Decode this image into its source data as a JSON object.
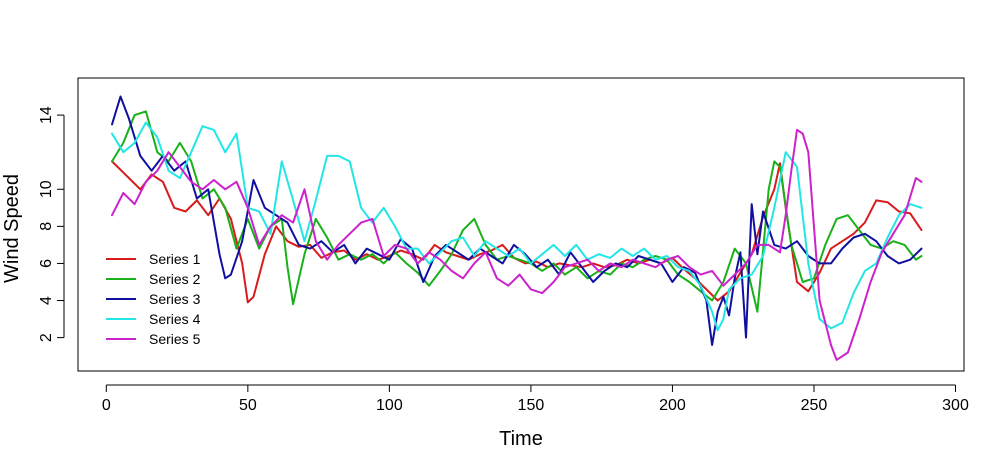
{
  "chart_data": {
    "type": "line",
    "xlabel": "Time",
    "ylabel": "Wind Speed",
    "xlim": [
      -10,
      303
    ],
    "ylim": [
      0.2,
      16.0
    ],
    "xticks": [
      0,
      50,
      100,
      150,
      200,
      250,
      300
    ],
    "yticks": [
      2,
      4,
      6,
      8,
      10,
      14
    ],
    "grid": false,
    "legend_position": "bottom-left",
    "series": [
      {
        "name": "Series 1",
        "color": "#d81b1b",
        "x": [
          2,
          8,
          12,
          16,
          20,
          24,
          28,
          32,
          36,
          40,
          44,
          48,
          50,
          52,
          56,
          60,
          64,
          68,
          72,
          76,
          80,
          84,
          88,
          92,
          96,
          100,
          104,
          108,
          112,
          116,
          120,
          124,
          128,
          132,
          136,
          140,
          144,
          148,
          152,
          156,
          160,
          164,
          168,
          172,
          176,
          180,
          184,
          188,
          192,
          196,
          200,
          204,
          208,
          212,
          216,
          220,
          224,
          228,
          232,
          236,
          238,
          240,
          244,
          248,
          252,
          256,
          260,
          264,
          268,
          272,
          276,
          280,
          284,
          288
        ],
        "y": [
          11.5,
          10.6,
          10.0,
          10.8,
          10.4,
          9.0,
          8.8,
          9.4,
          8.6,
          9.5,
          8.4,
          6.0,
          3.9,
          4.2,
          6.5,
          8.0,
          7.2,
          6.9,
          7.0,
          6.3,
          6.6,
          6.7,
          6.2,
          6.5,
          6.2,
          6.4,
          6.7,
          6.5,
          6.2,
          7.0,
          6.6,
          6.4,
          6.2,
          6.5,
          6.7,
          7.0,
          6.3,
          6.0,
          6.1,
          5.8,
          6.0,
          5.9,
          5.8,
          6.0,
          5.8,
          5.9,
          6.2,
          6.0,
          6.2,
          6.0,
          6.3,
          5.7,
          5.2,
          4.6,
          4.0,
          4.5,
          5.5,
          6.5,
          8.5,
          10.0,
          11.4,
          9.0,
          5.0,
          4.5,
          5.5,
          6.8,
          7.2,
          7.6,
          8.2,
          9.4,
          9.3,
          8.8,
          8.7,
          7.8
        ]
      },
      {
        "name": "Series 2",
        "color": "#1ab01a",
        "x": [
          2,
          6,
          10,
          14,
          18,
          22,
          26,
          30,
          34,
          38,
          42,
          46,
          50,
          54,
          58,
          62,
          64,
          66,
          70,
          74,
          78,
          82,
          86,
          90,
          94,
          98,
          102,
          106,
          110,
          114,
          118,
          122,
          126,
          130,
          134,
          138,
          142,
          146,
          150,
          154,
          158,
          162,
          166,
          170,
          174,
          178,
          182,
          186,
          190,
          194,
          198,
          202,
          206,
          210,
          214,
          218,
          222,
          226,
          230,
          234,
          236,
          238,
          242,
          246,
          250,
          254,
          258,
          262,
          266,
          270,
          274,
          278,
          282,
          286,
          288
        ],
        "y": [
          11.5,
          12.5,
          14.0,
          14.2,
          12.0,
          11.5,
          12.5,
          11.5,
          9.5,
          10.0,
          9.0,
          6.8,
          8.4,
          6.8,
          8.0,
          8.4,
          5.8,
          3.8,
          6.5,
          8.4,
          7.4,
          6.2,
          6.5,
          6.2,
          6.5,
          6.0,
          6.6,
          6.0,
          5.5,
          4.8,
          5.6,
          6.5,
          7.8,
          8.4,
          7.0,
          6.2,
          6.4,
          6.2,
          6.0,
          5.6,
          6.0,
          5.4,
          5.8,
          5.2,
          5.6,
          5.4,
          6.0,
          5.8,
          6.2,
          6.4,
          6.2,
          5.4,
          5.0,
          4.5,
          4.0,
          5.0,
          6.8,
          6.0,
          3.4,
          10.0,
          11.5,
          11.2,
          7.0,
          5.0,
          5.2,
          7.0,
          8.4,
          8.6,
          7.8,
          7.0,
          6.8,
          7.2,
          7.0,
          6.2,
          6.4
        ]
      },
      {
        "name": "Series 3",
        "color": "#1010a0",
        "x": [
          2,
          5,
          8,
          12,
          16,
          20,
          24,
          28,
          32,
          36,
          40,
          42,
          44,
          48,
          52,
          56,
          60,
          64,
          68,
          72,
          76,
          80,
          84,
          88,
          92,
          96,
          100,
          104,
          108,
          112,
          116,
          120,
          124,
          128,
          132,
          136,
          140,
          144,
          148,
          152,
          156,
          160,
          164,
          168,
          172,
          176,
          180,
          184,
          188,
          192,
          196,
          200,
          204,
          208,
          212,
          214,
          216,
          218,
          220,
          222,
          224,
          226,
          228,
          230,
          232,
          236,
          240,
          244,
          248,
          252,
          256,
          260,
          264,
          268,
          272,
          276,
          280,
          284,
          288
        ],
        "y": [
          13.5,
          15.0,
          13.8,
          11.8,
          11.0,
          11.8,
          11.0,
          11.5,
          9.5,
          10.0,
          6.5,
          5.2,
          5.4,
          7.2,
          10.5,
          9.0,
          8.6,
          8.2,
          7.0,
          6.8,
          7.2,
          6.6,
          7.0,
          6.0,
          6.8,
          6.5,
          6.2,
          7.3,
          6.8,
          5.0,
          6.4,
          7.0,
          6.6,
          6.2,
          6.8,
          6.4,
          6.0,
          7.0,
          6.5,
          5.8,
          6.2,
          5.4,
          6.6,
          5.8,
          5.0,
          5.6,
          6.0,
          5.8,
          6.4,
          6.2,
          6.0,
          5.0,
          5.8,
          5.5,
          4.0,
          1.6,
          3.4,
          4.2,
          3.2,
          5.2,
          6.6,
          2.0,
          9.2,
          6.5,
          8.8,
          7.0,
          6.8,
          7.2,
          6.4,
          6.0,
          6.0,
          6.8,
          7.4,
          7.6,
          7.2,
          6.4,
          6.0,
          6.2,
          6.8
        ]
      },
      {
        "name": "Series 4",
        "color": "#22e6e6",
        "x": [
          2,
          6,
          10,
          14,
          18,
          22,
          26,
          30,
          34,
          38,
          42,
          46,
          50,
          54,
          58,
          62,
          66,
          70,
          74,
          78,
          82,
          86,
          90,
          94,
          98,
          102,
          106,
          110,
          114,
          118,
          122,
          126,
          130,
          134,
          138,
          142,
          146,
          150,
          154,
          158,
          162,
          166,
          170,
          174,
          178,
          182,
          186,
          190,
          194,
          198,
          202,
          206,
          210,
          214,
          216,
          218,
          220,
          224,
          228,
          232,
          236,
          240,
          244,
          248,
          252,
          256,
          260,
          264,
          268,
          272,
          276,
          280,
          284,
          288
        ],
        "y": [
          13.0,
          12.0,
          12.5,
          13.6,
          12.8,
          11.0,
          10.6,
          12.0,
          13.4,
          13.2,
          12.0,
          13.0,
          9.0,
          8.8,
          7.6,
          11.5,
          9.4,
          7.2,
          9.4,
          11.8,
          11.8,
          11.5,
          9.0,
          8.2,
          9.0,
          8.0,
          6.8,
          6.8,
          6.0,
          6.6,
          7.2,
          7.4,
          6.4,
          7.2,
          6.8,
          6.4,
          6.8,
          6.0,
          6.5,
          7.0,
          6.4,
          7.0,
          6.2,
          6.5,
          6.3,
          6.8,
          6.4,
          6.8,
          6.2,
          6.4,
          5.8,
          5.6,
          4.8,
          3.4,
          2.4,
          3.0,
          4.6,
          5.2,
          5.4,
          6.4,
          9.0,
          12.0,
          11.2,
          6.0,
          3.0,
          2.5,
          2.8,
          4.4,
          5.6,
          6.0,
          7.4,
          8.6,
          9.2,
          9.0
        ]
      },
      {
        "name": "Series 5",
        "color": "#cc22cc",
        "x": [
          2,
          6,
          10,
          14,
          18,
          22,
          26,
          30,
          34,
          38,
          42,
          46,
          50,
          54,
          58,
          62,
          66,
          70,
          74,
          78,
          82,
          86,
          90,
          94,
          98,
          102,
          106,
          110,
          114,
          118,
          122,
          126,
          130,
          134,
          138,
          142,
          146,
          150,
          154,
          158,
          162,
          166,
          170,
          174,
          178,
          182,
          186,
          190,
          194,
          198,
          202,
          206,
          210,
          214,
          218,
          222,
          226,
          230,
          234,
          238,
          240,
          242,
          244,
          246,
          248,
          252,
          256,
          258,
          262,
          266,
          270,
          274,
          278,
          282,
          286,
          288
        ],
        "y": [
          8.6,
          9.8,
          9.2,
          10.4,
          11.0,
          12.0,
          11.2,
          10.4,
          10.0,
          10.5,
          10.0,
          10.4,
          9.0,
          7.0,
          8.0,
          8.6,
          8.2,
          10.0,
          7.2,
          6.2,
          7.0,
          7.6,
          8.2,
          8.4,
          6.4,
          7.0,
          6.8,
          6.0,
          6.6,
          6.2,
          5.6,
          5.2,
          6.0,
          6.6,
          5.2,
          4.8,
          5.4,
          4.6,
          4.4,
          5.0,
          5.8,
          6.0,
          6.2,
          5.6,
          6.0,
          5.8,
          6.2,
          6.0,
          5.8,
          6.2,
          6.4,
          5.8,
          5.4,
          5.6,
          4.8,
          5.4,
          6.0,
          7.0,
          7.0,
          6.6,
          8.6,
          11.0,
          13.2,
          13.0,
          12.0,
          4.0,
          1.6,
          0.8,
          1.2,
          3.0,
          5.0,
          6.6,
          7.6,
          8.6,
          10.6,
          10.4
        ]
      }
    ]
  }
}
